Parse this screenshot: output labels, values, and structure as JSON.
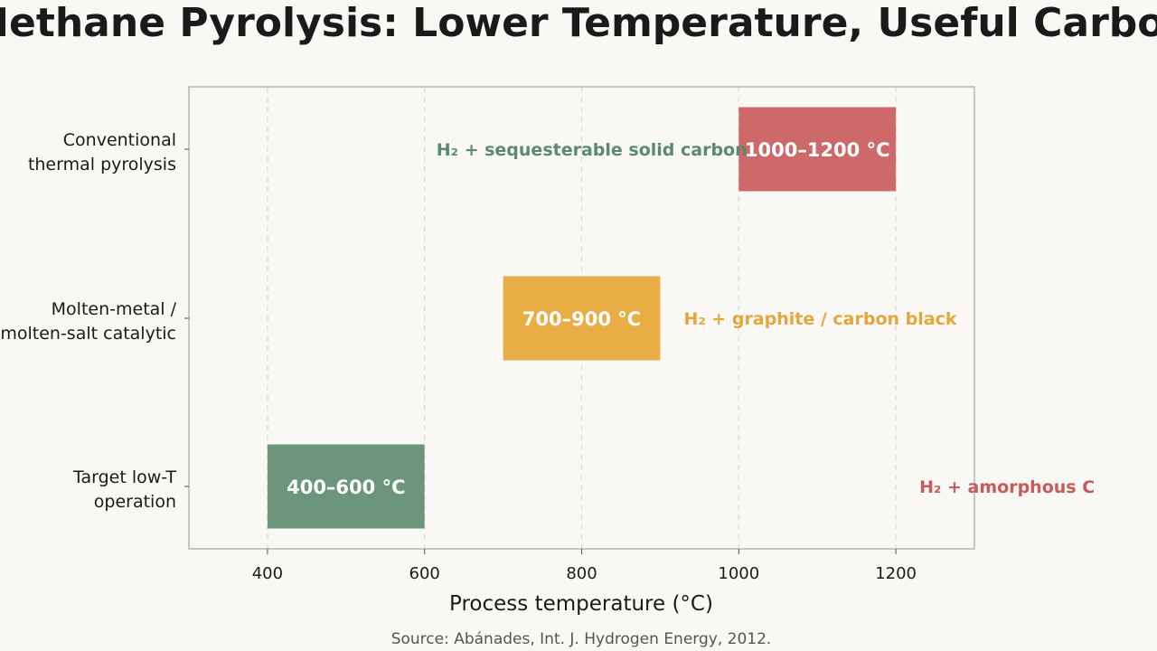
{
  "chart_data": {
    "type": "bar",
    "orientation": "horizontal",
    "title": "Methane Pyrolysis: Lower Temperature, Useful Carbon",
    "xlabel": "Process temperature (°C)",
    "ylabel": "",
    "xlim": [
      300,
      1300
    ],
    "xticks": [
      "400",
      "600",
      "800",
      "1000",
      "1200"
    ],
    "xtick_values": [
      400,
      600,
      800,
      1000,
      1200
    ],
    "grid": "vertical-dashed",
    "source": "Source: Abánades, Int. J. Hydrogen Energy, 2012.",
    "categories": [
      {
        "line1": "Conventional",
        "line2": "thermal pyrolysis"
      },
      {
        "line1": "Molten-metal /",
        "line2": "molten-salt catalytic"
      },
      {
        "line1": "Target low-T",
        "line2": "operation"
      }
    ],
    "bars": [
      {
        "start": 1000,
        "end": 1200,
        "label": "1000–1200 °C",
        "color": "#cd6a69"
      },
      {
        "start": 700,
        "end": 900,
        "label": "700–900 °C",
        "color": "#e8ae45"
      },
      {
        "start": 400,
        "end": 600,
        "label": "400–600 °C",
        "color": "#6b967c"
      }
    ],
    "annotations": [
      {
        "text": "H₂ + sequesterable solid carbon",
        "x": 615,
        "row": 0,
        "color": "#5b8a6e"
      },
      {
        "text": "H₂ + graphite / carbon black",
        "x": 930,
        "row": 1,
        "color": "#e3a73c"
      },
      {
        "text": "H₂ + amorphous C",
        "x": 1230,
        "row": 2,
        "color": "#c85a5a"
      }
    ]
  }
}
